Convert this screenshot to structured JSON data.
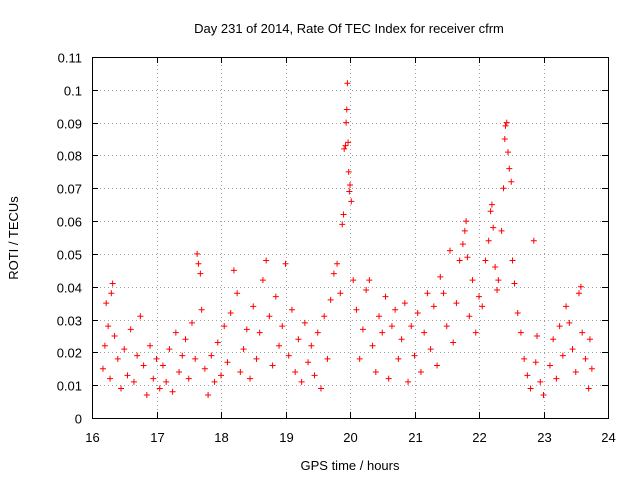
{
  "chart_data": {
    "type": "scatter",
    "title": "Day 231 of 2014, Rate Of TEC Index for receiver cfrm",
    "xlabel": "GPS time / hours",
    "ylabel": "ROTI / TECUs",
    "xlim": [
      16,
      24
    ],
    "ylim": [
      0,
      0.11
    ],
    "xticks": [
      "16",
      "17",
      "18",
      "19",
      "20",
      "21",
      "22",
      "23",
      "24"
    ],
    "yticks": [
      "0",
      "0.01",
      "0.02",
      "0.03",
      "0.04",
      "0.05",
      "0.06",
      "0.07",
      "0.08",
      "0.09",
      "0.1",
      "0.11"
    ],
    "grid": true,
    "marker": "+",
    "color": "#ff0000",
    "series": [
      {
        "name": "ROTI",
        "points": [
          [
            16.17,
            0.015
          ],
          [
            16.2,
            0.022
          ],
          [
            16.22,
            0.035
          ],
          [
            16.25,
            0.028
          ],
          [
            16.28,
            0.012
          ],
          [
            16.3,
            0.038
          ],
          [
            16.32,
            0.041
          ],
          [
            16.35,
            0.025
          ],
          [
            16.4,
            0.018
          ],
          [
            16.45,
            0.009
          ],
          [
            16.5,
            0.021
          ],
          [
            16.55,
            0.013
          ],
          [
            16.6,
            0.027
          ],
          [
            16.65,
            0.011
          ],
          [
            16.7,
            0.019
          ],
          [
            16.75,
            0.031
          ],
          [
            16.8,
            0.016
          ],
          [
            16.85,
            0.007
          ],
          [
            16.9,
            0.022
          ],
          [
            16.95,
            0.012
          ],
          [
            17.0,
            0.018
          ],
          [
            17.05,
            0.009
          ],
          [
            17.1,
            0.016
          ],
          [
            17.15,
            0.011
          ],
          [
            17.2,
            0.021
          ],
          [
            17.25,
            0.008
          ],
          [
            17.3,
            0.026
          ],
          [
            17.35,
            0.014
          ],
          [
            17.4,
            0.019
          ],
          [
            17.45,
            0.024
          ],
          [
            17.5,
            0.012
          ],
          [
            17.55,
            0.029
          ],
          [
            17.6,
            0.018
          ],
          [
            17.63,
            0.05
          ],
          [
            17.65,
            0.047
          ],
          [
            17.68,
            0.044
          ],
          [
            17.7,
            0.033
          ],
          [
            17.75,
            0.015
          ],
          [
            17.8,
            0.007
          ],
          [
            17.85,
            0.019
          ],
          [
            17.9,
            0.011
          ],
          [
            17.95,
            0.023
          ],
          [
            18.0,
            0.013
          ],
          [
            18.05,
            0.028
          ],
          [
            18.1,
            0.017
          ],
          [
            18.15,
            0.032
          ],
          [
            18.2,
            0.045
          ],
          [
            18.25,
            0.038
          ],
          [
            18.3,
            0.014
          ],
          [
            18.35,
            0.021
          ],
          [
            18.4,
            0.027
          ],
          [
            18.45,
            0.012
          ],
          [
            18.5,
            0.034
          ],
          [
            18.55,
            0.018
          ],
          [
            18.6,
            0.026
          ],
          [
            18.65,
            0.042
          ],
          [
            18.7,
            0.048
          ],
          [
            18.75,
            0.031
          ],
          [
            18.8,
            0.016
          ],
          [
            18.85,
            0.037
          ],
          [
            18.9,
            0.022
          ],
          [
            18.95,
            0.028
          ],
          [
            19.0,
            0.047
          ],
          [
            19.05,
            0.019
          ],
          [
            19.1,
            0.033
          ],
          [
            19.15,
            0.014
          ],
          [
            19.2,
            0.024
          ],
          [
            19.25,
            0.011
          ],
          [
            19.3,
            0.029
          ],
          [
            19.35,
            0.017
          ],
          [
            19.4,
            0.022
          ],
          [
            19.45,
            0.013
          ],
          [
            19.5,
            0.026
          ],
          [
            19.55,
            0.009
          ],
          [
            19.6,
            0.031
          ],
          [
            19.65,
            0.018
          ],
          [
            19.7,
            0.036
          ],
          [
            19.75,
            0.044
          ],
          [
            19.8,
            0.047
          ],
          [
            19.85,
            0.038
          ],
          [
            19.88,
            0.059
          ],
          [
            19.9,
            0.062
          ],
          [
            19.91,
            0.082
          ],
          [
            19.93,
            0.083
          ],
          [
            19.94,
            0.09
          ],
          [
            19.95,
            0.094
          ],
          [
            19.96,
            0.102
          ],
          [
            19.97,
            0.084
          ],
          [
            19.98,
            0.075
          ],
          [
            19.99,
            0.069
          ],
          [
            20.0,
            0.071
          ],
          [
            20.02,
            0.066
          ],
          [
            20.05,
            0.042
          ],
          [
            20.1,
            0.033
          ],
          [
            20.15,
            0.018
          ],
          [
            20.2,
            0.027
          ],
          [
            20.25,
            0.039
          ],
          [
            20.3,
            0.042
          ],
          [
            20.35,
            0.022
          ],
          [
            20.4,
            0.014
          ],
          [
            20.45,
            0.031
          ],
          [
            20.5,
            0.026
          ],
          [
            20.55,
            0.037
          ],
          [
            20.6,
            0.012
          ],
          [
            20.65,
            0.028
          ],
          [
            20.7,
            0.033
          ],
          [
            20.75,
            0.018
          ],
          [
            20.8,
            0.024
          ],
          [
            20.85,
            0.035
          ],
          [
            20.9,
            0.011
          ],
          [
            20.95,
            0.028
          ],
          [
            21.0,
            0.019
          ],
          [
            21.05,
            0.032
          ],
          [
            21.1,
            0.014
          ],
          [
            21.15,
            0.026
          ],
          [
            21.2,
            0.038
          ],
          [
            21.25,
            0.021
          ],
          [
            21.3,
            0.034
          ],
          [
            21.35,
            0.016
          ],
          [
            21.4,
            0.043
          ],
          [
            21.45,
            0.038
          ],
          [
            21.5,
            0.028
          ],
          [
            21.55,
            0.051
          ],
          [
            21.6,
            0.023
          ],
          [
            21.65,
            0.035
          ],
          [
            21.7,
            0.048
          ],
          [
            21.75,
            0.053
          ],
          [
            21.78,
            0.057
          ],
          [
            21.8,
            0.06
          ],
          [
            21.82,
            0.049
          ],
          [
            21.85,
            0.031
          ],
          [
            21.9,
            0.042
          ],
          [
            21.95,
            0.026
          ],
          [
            22.0,
            0.037
          ],
          [
            22.05,
            0.034
          ],
          [
            22.1,
            0.048
          ],
          [
            22.15,
            0.054
          ],
          [
            22.18,
            0.063
          ],
          [
            22.2,
            0.065
          ],
          [
            22.22,
            0.058
          ],
          [
            22.25,
            0.046
          ],
          [
            22.28,
            0.039
          ],
          [
            22.3,
            0.042
          ],
          [
            22.35,
            0.057
          ],
          [
            22.38,
            0.07
          ],
          [
            22.4,
            0.085
          ],
          [
            22.41,
            0.089
          ],
          [
            22.43,
            0.09
          ],
          [
            22.45,
            0.081
          ],
          [
            22.47,
            0.076
          ],
          [
            22.5,
            0.072
          ],
          [
            22.52,
            0.048
          ],
          [
            22.55,
            0.041
          ],
          [
            22.6,
            0.032
          ],
          [
            22.65,
            0.026
          ],
          [
            22.7,
            0.018
          ],
          [
            22.75,
            0.013
          ],
          [
            22.8,
            0.009
          ],
          [
            22.85,
            0.054
          ],
          [
            22.88,
            0.017
          ],
          [
            22.9,
            0.025
          ],
          [
            22.95,
            0.011
          ],
          [
            23.0,
            0.007
          ],
          [
            23.1,
            0.016
          ],
          [
            23.15,
            0.024
          ],
          [
            23.2,
            0.012
          ],
          [
            23.25,
            0.028
          ],
          [
            23.3,
            0.019
          ],
          [
            23.35,
            0.034
          ],
          [
            23.4,
            0.029
          ],
          [
            23.45,
            0.021
          ],
          [
            23.5,
            0.014
          ],
          [
            23.55,
            0.038
          ],
          [
            23.58,
            0.04
          ],
          [
            23.6,
            0.026
          ],
          [
            23.65,
            0.018
          ],
          [
            23.7,
            0.009
          ],
          [
            23.72,
            0.024
          ],
          [
            23.75,
            0.015
          ]
        ]
      }
    ]
  }
}
